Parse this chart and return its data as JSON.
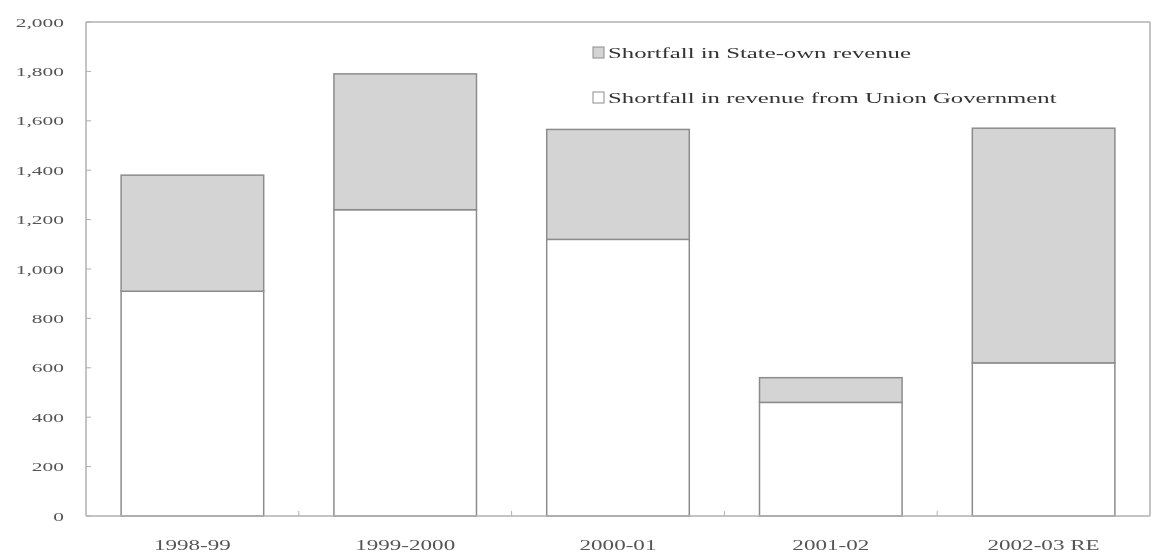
{
  "chart_data": {
    "type": "bar",
    "stacked": true,
    "categories": [
      "1998-99",
      "1999-2000",
      "2000-01",
      "2001-02",
      "2002-03 RE"
    ],
    "series": [
      {
        "name": "Shortfall in revenue from Union Government",
        "color": "#ffffff",
        "values": [
          910,
          1240,
          1120,
          460,
          620
        ]
      },
      {
        "name": "Shortfall in State-own revenue",
        "color": "#d4d4d4",
        "values": [
          470,
          550,
          445,
          100,
          950
        ]
      }
    ],
    "ylim": [
      0,
      2000
    ],
    "yticks": [
      0,
      200,
      400,
      600,
      800,
      {
        "value": 1000,
        "label": "1,000"
      },
      {
        "value": 1200,
        "label": "1,200"
      },
      {
        "value": 1400,
        "label": "1,400"
      },
      {
        "value": 1600,
        "label": "1,600"
      },
      {
        "value": 1800,
        "label": "1,800"
      },
      {
        "value": 2000,
        "label": "2,000"
      }
    ],
    "grid": false,
    "legend": "top right"
  }
}
